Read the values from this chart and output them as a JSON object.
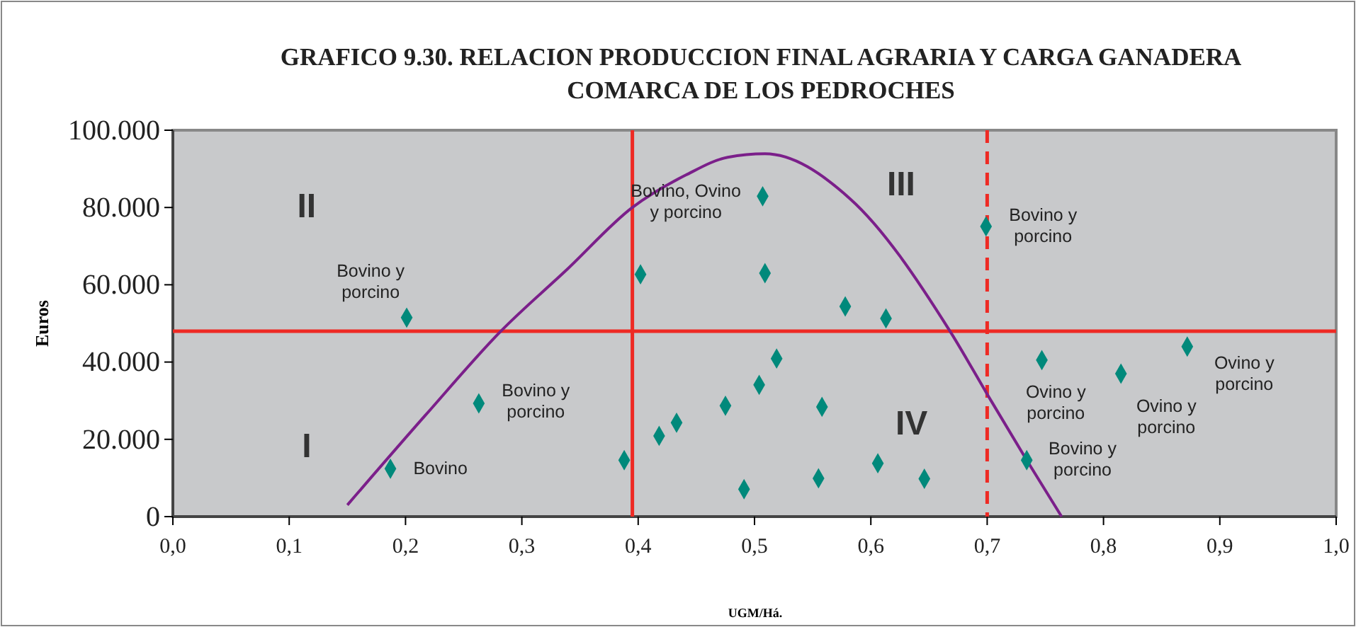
{
  "chart_data": {
    "type": "scatter",
    "title": "GRAFICO 9.30. RELACION PRODUCCION FINAL AGRARIA Y CARGA GANADERA\nCOMARCA DE LOS PEDROCHES",
    "xlabel": "UGM/Há.",
    "ylabel": "Euros",
    "xlim": [
      0,
      1
    ],
    "xticks": [
      {
        "value": 0,
        "label": "0,0"
      },
      {
        "value": 0.1,
        "label": "0,1"
      },
      {
        "value": 0.2,
        "label": "0,2"
      },
      {
        "value": 0.3,
        "label": "0,3"
      },
      {
        "value": 0.4,
        "label": "0,4"
      },
      {
        "value": 0.5,
        "label": "0,5"
      },
      {
        "value": 0.6,
        "label": "0,6"
      },
      {
        "value": 0.7,
        "label": "0,7"
      },
      {
        "value": 0.8,
        "label": "0,8"
      },
      {
        "value": 0.9,
        "label": "0,9"
      },
      {
        "value": 1,
        "label": "1,0"
      }
    ],
    "ylim": [
      0,
      100000
    ],
    "yticks": [
      {
        "value": 0,
        "label": "0"
      },
      {
        "value": 20000,
        "label": "20.000"
      },
      {
        "value": 40000,
        "label": "40.000"
      },
      {
        "value": 60000,
        "label": "60.000"
      },
      {
        "value": 80000,
        "label": "80.000"
      },
      {
        "value": 100000,
        "label": "100.000"
      }
    ],
    "grid": false,
    "series": [
      {
        "type": "scatter",
        "marker": "diamond",
        "color": "#00897b",
        "x": [
          0.201,
          0.263,
          0.187,
          0.388,
          0.402,
          0.418,
          0.433,
          0.475,
          0.507,
          0.509,
          0.578,
          0.613,
          0.699,
          0.519,
          0.504,
          0.558,
          0.491,
          0.555,
          0.606,
          0.646,
          0.747,
          0.815,
          0.872,
          0.734
        ],
        "values": [
          51500,
          29300,
          12400,
          14600,
          62700,
          20900,
          24300,
          28700,
          82900,
          63000,
          54400,
          51300,
          75100,
          40900,
          34100,
          28400,
          7100,
          9900,
          13800,
          9800,
          40500,
          37000,
          44000,
          14600
        ]
      },
      {
        "type": "line",
        "marker": "none",
        "color": "#7b1f8a",
        "x": [
          0.15,
          0.217,
          0.282,
          0.339,
          0.395,
          0.441,
          0.477,
          0.509,
          0.582,
          0.668,
          0.7,
          0.734,
          0.764
        ],
        "values": [
          3000,
          26200,
          48000,
          64000,
          80000,
          88400,
          93000,
          93900,
          82300,
          48000,
          31700,
          14600,
          0
        ]
      }
    ],
    "ref_lines": [
      {
        "axis": "y",
        "value": 48000,
        "color": "#ee2a24",
        "line_style": "solid"
      },
      {
        "axis": "x",
        "value": 0.395,
        "color": "#ee2a24",
        "line_style": "solid"
      },
      {
        "axis": "x",
        "value": 0.7,
        "color": "#ee2a24",
        "line_style": "dashed"
      }
    ],
    "annotations": [
      "Bovino y\nporcino",
      "Bovino y\nporcino",
      "Bovino",
      "Bovino, Ovino\ny porcino",
      "Bovino y\nporcino",
      "Ovino y\nporcino",
      "Bovino y\nporcino",
      "Ovino y\nporcino",
      "Ovino y\nporcino",
      "I",
      "II",
      "III",
      "IV"
    ]
  }
}
